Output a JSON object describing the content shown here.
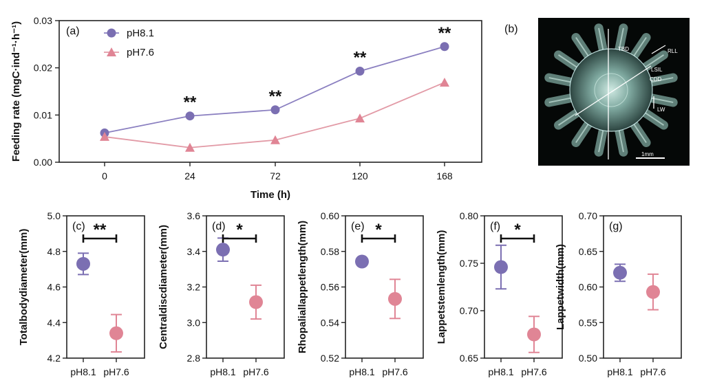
{
  "colors": {
    "ph81": "#7b6fb2",
    "ph76": "#e08595",
    "line81": "#8a7fc0",
    "line76": "#e29aa6"
  },
  "photo": {
    "label": "(b)",
    "annotations": [
      "TBD",
      "RLL",
      "LSIL",
      "CDD",
      "LW"
    ],
    "scale_label": "1mm"
  },
  "chart_data": [
    {
      "type": "line",
      "panel": "(a)",
      "x": [
        "0",
        "24",
        "72",
        "120",
        "168"
      ],
      "xlabel": "Time (h)",
      "ylabel": "Feeding rate (mgC·ind⁻¹·h⁻¹)",
      "ylim": [
        0,
        0.03
      ],
      "yticks": [
        "0.00",
        "0.01",
        "0.02",
        "0.03"
      ],
      "legend": "top-left",
      "series": [
        {
          "name": "pH8.1",
          "values": [
            0.0062,
            0.0098,
            0.0111,
            0.0193,
            0.0245
          ],
          "marker": "circle"
        },
        {
          "name": "pH7.6",
          "values": [
            0.0054,
            0.0031,
            0.0047,
            0.0093,
            0.0169
          ],
          "marker": "triangle"
        }
      ],
      "significance": [
        {
          "index": 1,
          "label": "**"
        },
        {
          "index": 2,
          "label": "**"
        },
        {
          "index": 3,
          "label": "**"
        },
        {
          "index": 4,
          "label": "**"
        }
      ]
    },
    {
      "type": "scatter",
      "panel": "(c)",
      "ylabel": "Totalbodydiameter(mm)",
      "categories": [
        "pH8.1",
        "pH7.6"
      ],
      "values": [
        4.73,
        4.34
      ],
      "errors": [
        0.06,
        0.105
      ],
      "ylim": [
        4.2,
        5.0
      ],
      "yticks": [
        "4.2",
        "4.4",
        "4.6",
        "4.8",
        "5.0"
      ],
      "significance": "**"
    },
    {
      "type": "scatter",
      "panel": "(d)",
      "ylabel": "Centraldiscdiameter(mm)",
      "categories": [
        "pH8.1",
        "pH7.6"
      ],
      "values": [
        3.41,
        3.115
      ],
      "errors": [
        0.065,
        0.095
      ],
      "ylim": [
        2.8,
        3.6
      ],
      "yticks": [
        "2.8",
        "3.0",
        "3.2",
        "3.4",
        "3.6"
      ],
      "significance": "*"
    },
    {
      "type": "scatter",
      "panel": "(e)",
      "ylabel": "Rhopaliallappetlength(mm)",
      "categories": [
        "pH8.1",
        "pH7.6"
      ],
      "values": [
        0.5743,
        0.5533
      ],
      "errors": [
        0.0008,
        0.011
      ],
      "ylim": [
        0.52,
        0.6
      ],
      "yticks": [
        "0.52",
        "0.54",
        "0.56",
        "0.58",
        "0.60"
      ],
      "significance": "*"
    },
    {
      "type": "scatter",
      "panel": "(f)",
      "ylabel": "Lappetstemlength(mm)",
      "categories": [
        "pH8.1",
        "pH7.6"
      ],
      "values": [
        0.746,
        0.675
      ],
      "errors": [
        0.023,
        0.019
      ],
      "ylim": [
        0.65,
        0.8
      ],
      "yticks": [
        "0.65",
        "0.70",
        "0.75",
        "0.80"
      ],
      "significance": "*"
    },
    {
      "type": "scatter",
      "panel": "(g)",
      "ylabel": "Lappetwidth(mm)",
      "categories": [
        "pH8.1",
        "pH7.6"
      ],
      "values": [
        0.62,
        0.593
      ],
      "errors": [
        0.012,
        0.025
      ],
      "ylim": [
        0.5,
        0.7
      ],
      "yticks": [
        "0.50",
        "0.55",
        "0.60",
        "0.65",
        "0.70"
      ],
      "significance": ""
    }
  ]
}
